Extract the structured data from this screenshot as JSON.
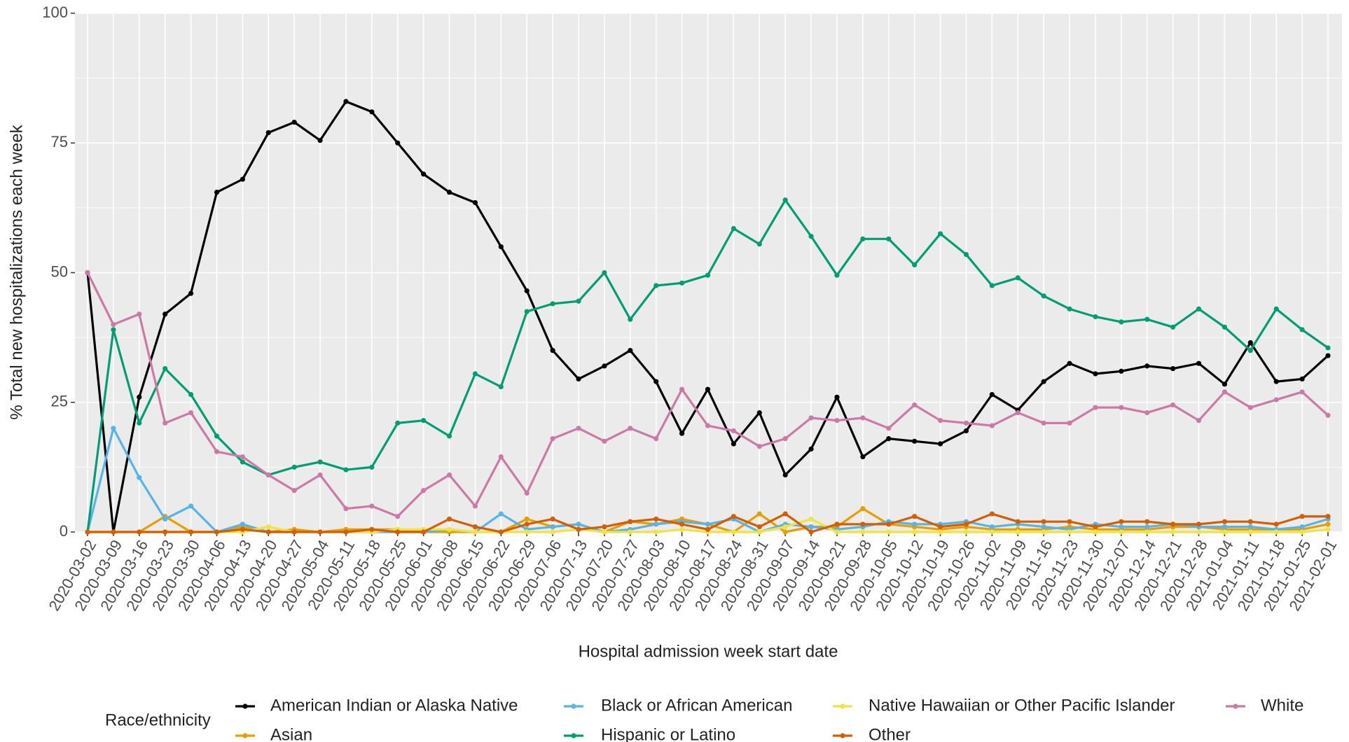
{
  "chart_data": {
    "type": "line",
    "y_label": "% Total new hospitalizations each week",
    "x_label": "Hospital admission week start date",
    "legend_title": "Race/ethnicity",
    "legend_position": "bottom",
    "grid": true,
    "ylim": [
      0,
      100
    ],
    "yticks": [
      0,
      25,
      50,
      75,
      100
    ],
    "categories": [
      "2020-03-02",
      "2020-03-09",
      "2020-03-16",
      "2020-03-23",
      "2020-03-30",
      "2020-04-06",
      "2020-04-13",
      "2020-04-20",
      "2020-04-27",
      "2020-05-04",
      "2020-05-11",
      "2020-05-18",
      "2020-05-25",
      "2020-06-01",
      "2020-06-08",
      "2020-06-15",
      "2020-06-22",
      "2020-06-29",
      "2020-07-06",
      "2020-07-13",
      "2020-07-20",
      "2020-07-27",
      "2020-08-03",
      "2020-08-10",
      "2020-08-17",
      "2020-08-24",
      "2020-08-31",
      "2020-09-07",
      "2020-09-14",
      "2020-09-21",
      "2020-09-28",
      "2020-10-05",
      "2020-10-12",
      "2020-10-19",
      "2020-10-26",
      "2020-11-02",
      "2020-11-09",
      "2020-11-16",
      "2020-11-23",
      "2020-11-30",
      "2020-12-07",
      "2020-12-14",
      "2020-12-21",
      "2020-12-28",
      "2021-01-04",
      "2021-01-11",
      "2021-01-18",
      "2021-01-25",
      "2021-02-01"
    ],
    "series": [
      {
        "name": "American Indian or Alaska Native",
        "color": "#000000",
        "values": [
          50,
          0,
          26,
          42,
          46,
          65.5,
          68,
          77,
          79,
          75.5,
          83,
          81,
          75,
          69,
          65.5,
          63.5,
          55,
          46.5,
          35,
          29.5,
          32,
          35,
          29,
          19,
          27.5,
          17,
          23,
          11,
          16,
          26,
          14.5,
          18,
          17.5,
          17,
          19.5,
          26.5,
          23.5,
          29,
          32.5,
          30.5,
          31,
          32,
          31.5,
          32.5,
          28.5,
          36.5,
          29,
          29.5,
          34
        ]
      },
      {
        "name": "Asian",
        "color": "#E69F00",
        "values": [
          0,
          0,
          0,
          3,
          0,
          0,
          1,
          0,
          0.5,
          0,
          0.5,
          0.5,
          0.5,
          0,
          0,
          0,
          0,
          2.5,
          1,
          1.5,
          0,
          2,
          1.5,
          2.5,
          1.5,
          0,
          3.5,
          0,
          1,
          1,
          4.5,
          1.5,
          1,
          0.5,
          1,
          0.5,
          0.5,
          0.5,
          1,
          0.5,
          0.5,
          0.5,
          1,
          1,
          0.5,
          0.5,
          0.5,
          0.5,
          1.5
        ]
      },
      {
        "name": "Black or African American",
        "color": "#56B4E9",
        "values": [
          0,
          20,
          10.5,
          2.5,
          5,
          0,
          1.5,
          0,
          0,
          0,
          0,
          0,
          0,
          0,
          0.5,
          0,
          3.5,
          0.5,
          1,
          1.5,
          0,
          0.5,
          1.5,
          2,
          1.5,
          2.5,
          0,
          1.5,
          1,
          0.5,
          1,
          2,
          1.5,
          1.5,
          2,
          1,
          1.5,
          1,
          0.5,
          1.5,
          1,
          1,
          1.5,
          1,
          1,
          1,
          0.5,
          1,
          2.5
        ]
      },
      {
        "name": "Hispanic or Latino",
        "color": "#009E73",
        "values": [
          0,
          39,
          21,
          31.5,
          26.5,
          18.5,
          13.5,
          11,
          12.5,
          13.5,
          12,
          12.5,
          21,
          21.5,
          18.5,
          30.5,
          28,
          42.5,
          44,
          44.5,
          50,
          41,
          47.5,
          48,
          49.5,
          58.5,
          55.5,
          64,
          57,
          49.5,
          56.5,
          56.5,
          51.5,
          57.5,
          53.5,
          47.5,
          49,
          45.5,
          43,
          41.5,
          40.5,
          41,
          39.5,
          43,
          39.5,
          35,
          43,
          39,
          35.5
        ]
      },
      {
        "name": "Native Hawaiian or Other Pacific Islander",
        "color": "#F0E442",
        "values": [
          0,
          0,
          0,
          0,
          0,
          0,
          0,
          1,
          0,
          0,
          0,
          0,
          0.5,
          0.5,
          0.5,
          0,
          0,
          0,
          0,
          0.5,
          0,
          0,
          0,
          0.5,
          0,
          0,
          0,
          1,
          2.5,
          0,
          0,
          0,
          0,
          0,
          0,
          0,
          0,
          0,
          0,
          0,
          0,
          0,
          0,
          0,
          0,
          0,
          0,
          0,
          0.5
        ]
      },
      {
        "name": "Other",
        "color": "#D55E00",
        "values": [
          0,
          0,
          0,
          0,
          0,
          0,
          0.5,
          0,
          0,
          0,
          0,
          0.5,
          0,
          0,
          2.5,
          1,
          0,
          1.5,
          2.5,
          0.5,
          1,
          2,
          2.5,
          1.5,
          0.5,
          3,
          1,
          3.5,
          0,
          1.5,
          1.5,
          1.5,
          3,
          1,
          1.5,
          3.5,
          2,
          2,
          2,
          1,
          2,
          2,
          1.5,
          1.5,
          2,
          2,
          1.5,
          3,
          3
        ]
      },
      {
        "name": "White",
        "color": "#CC79A7",
        "values": [
          50,
          40,
          42,
          21,
          23,
          15.5,
          14.5,
          11,
          8,
          11,
          4.5,
          5,
          3,
          8,
          11,
          5,
          14.5,
          7.5,
          18,
          20,
          17.5,
          20,
          18,
          27.5,
          20.5,
          19.5,
          16.5,
          18,
          22,
          21.5,
          22,
          20,
          24.5,
          21.5,
          21,
          20.5,
          23,
          21,
          21,
          24,
          24,
          23,
          24.5,
          21.5,
          27,
          24,
          25.5,
          27,
          22.5
        ]
      }
    ]
  }
}
